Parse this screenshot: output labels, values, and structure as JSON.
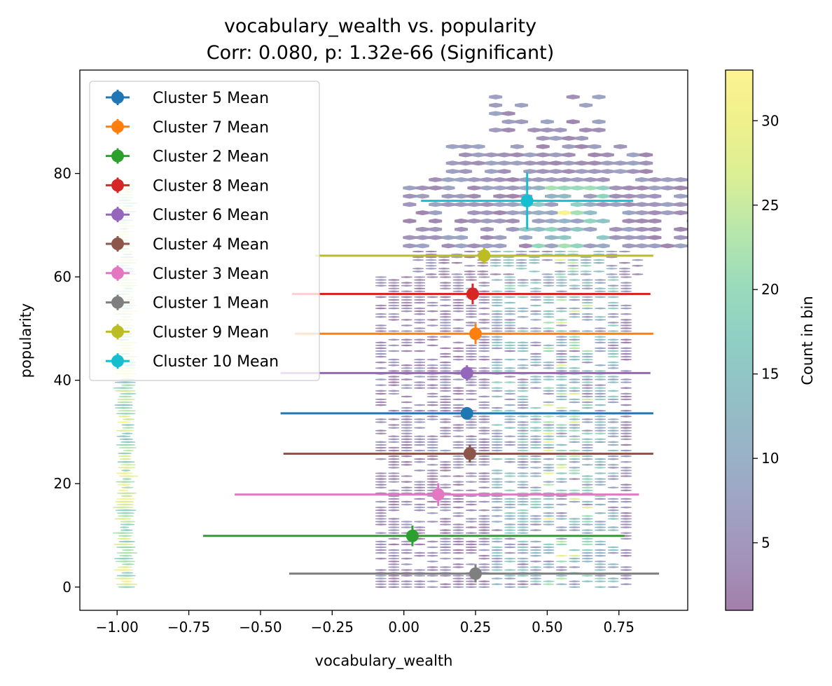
{
  "chart_data": {
    "type": "scatter",
    "title_line1": "vocabulary_wealth vs. popularity",
    "title_line2": "Corr: 0.080, p: 1.32e-66 (Significant)",
    "xlabel": "vocabulary_wealth",
    "ylabel": "popularity",
    "xlim": [
      -1.13,
      0.99
    ],
    "ylim": [
      -4.5,
      100
    ],
    "x_ticks": [
      -1.0,
      -0.75,
      -0.5,
      -0.25,
      0.0,
      0.25,
      0.5,
      0.75
    ],
    "x_tick_labels": [
      "−1.00",
      "−0.75",
      "−0.50",
      "−0.25",
      "0.00",
      "0.25",
      "0.50",
      "0.75"
    ],
    "y_ticks": [
      0,
      20,
      40,
      60,
      80
    ],
    "y_tick_labels": [
      "0",
      "20",
      "40",
      "60",
      "80"
    ],
    "colorbar": {
      "label": "Count in bin",
      "min": 1,
      "max": 33,
      "ticks": [
        5,
        10,
        15,
        20,
        25,
        30
      ],
      "tick_labels": [
        "5",
        "10",
        "15",
        "20",
        "25",
        "30"
      ],
      "colormap": "viridis",
      "alpha": 0.5
    },
    "legend_position": "upper-left",
    "series": [
      {
        "name": "Cluster 5 Mean",
        "color": "#1f77b4",
        "x": 0.22,
        "y": 33.6,
        "xerr": [
          0.65,
          0.65
        ],
        "yerr": 1.0
      },
      {
        "name": "Cluster 7 Mean",
        "color": "#ff7f0e",
        "x": 0.25,
        "y": 49.0,
        "xerr": [
          0.63,
          0.62
        ],
        "yerr": 2.0
      },
      {
        "name": "Cluster 2 Mean",
        "color": "#2ca02c",
        "x": 0.03,
        "y": 9.9,
        "xerr": [
          0.73,
          0.74
        ],
        "yerr": 2.0
      },
      {
        "name": "Cluster 8 Mean",
        "color": "#d62728",
        "x": 0.24,
        "y": 56.7,
        "xerr": [
          0.63,
          0.62
        ],
        "yerr": 2.0
      },
      {
        "name": "Cluster 6 Mean",
        "color": "#9467bd",
        "x": 0.22,
        "y": 41.4,
        "xerr": [
          0.65,
          0.64
        ],
        "yerr": 1.5
      },
      {
        "name": "Cluster 4 Mean",
        "color": "#8c564b",
        "x": 0.23,
        "y": 25.8,
        "xerr": [
          0.65,
          0.64
        ],
        "yerr": 1.7
      },
      {
        "name": "Cluster 3 Mean",
        "color": "#e377c2",
        "x": 0.12,
        "y": 17.9,
        "xerr": [
          0.71,
          0.7
        ],
        "yerr": 2.2
      },
      {
        "name": "Cluster 1 Mean",
        "color": "#7f7f7f",
        "x": 0.25,
        "y": 2.6,
        "xerr": [
          0.65,
          0.64
        ],
        "yerr": 1.7
      },
      {
        "name": "Cluster 9 Mean",
        "color": "#bcbd22",
        "x": 0.28,
        "y": 64.1,
        "xerr": [
          0.59,
          0.59
        ],
        "yerr": 1.6
      },
      {
        "name": "Cluster 10 Mean",
        "color": "#17becf",
        "x": 0.43,
        "y": 74.7,
        "xerr": [
          0.37,
          0.37
        ],
        "yerr": 5.5
      }
    ]
  }
}
